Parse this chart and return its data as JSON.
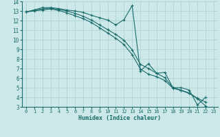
{
  "xlabel": "Humidex (Indice chaleur)",
  "bg_color": "#cde8e8",
  "grid_color": "#a8d0d0",
  "line_color": "#1a6b6b",
  "xlim": [
    -0.5,
    23.5
  ],
  "ylim": [
    3,
    14
  ],
  "xticks": [
    0,
    1,
    2,
    3,
    4,
    5,
    6,
    7,
    8,
    9,
    10,
    11,
    12,
    13,
    14,
    15,
    16,
    17,
    18,
    19,
    20,
    21,
    22,
    23
  ],
  "yticks": [
    3,
    4,
    5,
    6,
    7,
    8,
    9,
    10,
    11,
    12,
    13,
    14
  ],
  "s1_x": [
    0,
    1,
    2,
    3,
    4,
    5,
    6,
    7,
    8,
    9,
    10,
    11,
    12,
    13,
    14,
    15,
    16,
    17,
    18,
    19,
    20,
    21,
    22
  ],
  "s1_y": [
    12.9,
    13.1,
    13.35,
    13.35,
    13.25,
    13.1,
    13.0,
    12.85,
    12.55,
    12.3,
    12.05,
    11.55,
    12.1,
    13.55,
    6.75,
    7.5,
    6.5,
    6.6,
    5.0,
    5.0,
    4.75,
    3.2,
    4.0
  ],
  "s2_x": [
    0,
    1,
    2,
    3,
    4,
    5,
    6,
    7,
    8,
    9,
    10,
    11,
    12,
    13,
    14,
    15,
    16,
    17,
    18,
    19,
    20,
    21,
    22
  ],
  "s2_y": [
    12.9,
    13.1,
    13.2,
    13.3,
    13.15,
    13.0,
    12.75,
    12.45,
    12.05,
    11.55,
    11.05,
    10.55,
    9.95,
    8.95,
    7.45,
    7.0,
    6.5,
    6.05,
    5.0,
    4.75,
    4.45,
    3.9,
    3.5
  ],
  "s3_x": [
    0,
    1,
    2,
    3,
    4,
    5,
    6,
    7,
    8,
    9,
    10,
    11,
    12,
    13,
    14,
    15,
    16,
    17,
    18,
    19,
    20,
    21,
    22
  ],
  "s3_y": [
    12.9,
    13.0,
    13.1,
    13.2,
    13.05,
    12.8,
    12.5,
    12.2,
    11.8,
    11.25,
    10.7,
    10.15,
    9.5,
    8.45,
    6.95,
    6.4,
    6.15,
    5.75,
    4.95,
    4.7,
    4.4,
    3.85,
    3.1
  ]
}
